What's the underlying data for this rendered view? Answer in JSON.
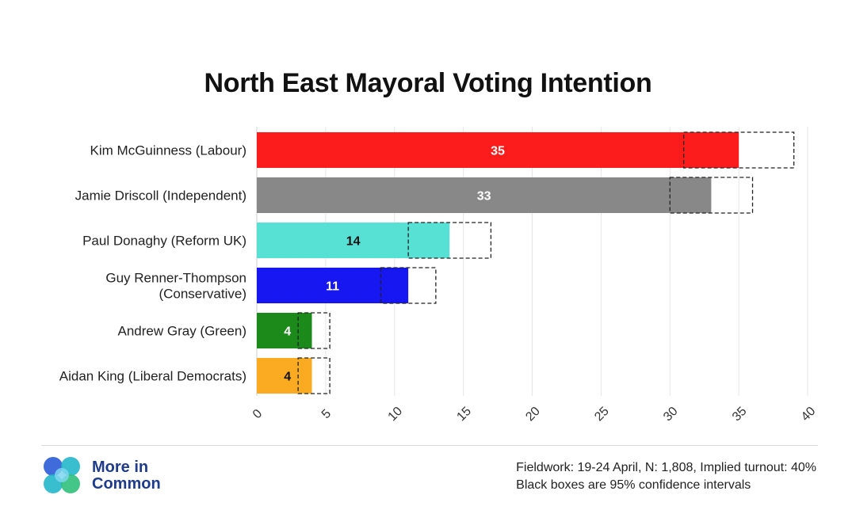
{
  "chart_data": {
    "type": "bar",
    "orientation": "horizontal",
    "title": "North East Mayoral Voting Intention",
    "categories": [
      [
        "Kim McGuinness (Labour)"
      ],
      [
        "Jamie Driscoll (Independent)"
      ],
      [
        "Paul Donaghy (Reform UK)"
      ],
      [
        "Guy Renner-Thompson",
        "(Conservative)"
      ],
      [
        "Andrew Gray (Green)"
      ],
      [
        "Aidan King (Liberal Democrats)"
      ]
    ],
    "values": [
      35,
      33,
      14,
      11,
      4,
      4
    ],
    "confidence_intervals": [
      [
        31,
        39
      ],
      [
        30,
        36
      ],
      [
        11,
        17
      ],
      [
        9,
        13
      ],
      [
        3,
        5.3
      ],
      [
        3,
        5.3
      ]
    ],
    "bar_colors": [
      "#fc1c1c",
      "#888888",
      "#57e0d4",
      "#1717f2",
      "#1b8a1b",
      "#fbab22"
    ],
    "label_colors": [
      "#ffffff",
      "#ffffff",
      "#111111",
      "#ffffff",
      "#ffffff",
      "#111111"
    ],
    "xlim": [
      0,
      40
    ],
    "xticks": [
      0,
      5,
      10,
      15,
      20,
      25,
      30,
      35,
      40
    ],
    "grid": true
  },
  "footer": {
    "logo_text_line1": "More in",
    "logo_text_line2": "Common",
    "note_line1": "Fieldwork: 19-24 April, N: 1,808, Implied turnout: 40%",
    "note_line2": "Black boxes are 95% confidence intervals"
  },
  "colors": {
    "brand_navy": "#1f3b8c",
    "logo_teal": "#22b7c9",
    "logo_green": "#2fc07a",
    "logo_blue": "#2b5bd6"
  }
}
